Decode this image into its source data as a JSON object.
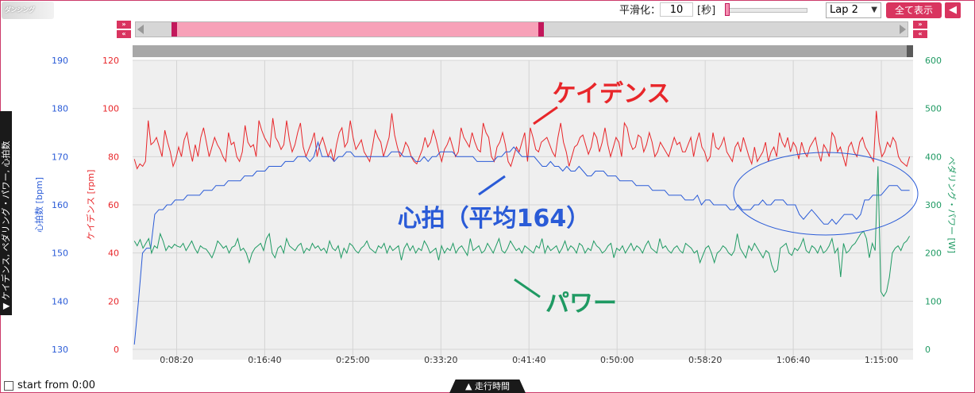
{
  "header": {
    "logo_text": "ダンシング",
    "smoothing_label": "平滑化：",
    "smoothing_value": "10",
    "seconds_label": "[秒]",
    "lap_value": "Lap 2",
    "show_all_label": "全て表示",
    "back_icon": "arrow-left-icon"
  },
  "range_nav": {
    "left_buttons": [
      "»",
      "«"
    ],
    "right_buttons": [
      "»",
      "«"
    ]
  },
  "side_tab_label": "▼ ケイデンス, ペダリング・パワー, 心拍数",
  "footer": {
    "start_from_label": "start from 0:00",
    "xaxis_tab_label": "▲ 走行時間"
  },
  "colors": {
    "heart_rate": "#2a5bd7",
    "cadence": "#e8262a",
    "power": "#1f9a63",
    "accent": "#d9345f",
    "plot_bg": "#efefef"
  },
  "chart_data": {
    "type": "line",
    "x_ticks": [
      "0:08:20",
      "0:16:40",
      "0:25:00",
      "0:33:20",
      "0:41:40",
      "0:50:00",
      "0:58:20",
      "1:06:40",
      "1:15:00"
    ],
    "x_tick_seconds": [
      500,
      1000,
      1500,
      2000,
      2500,
      3000,
      3500,
      4000,
      4500
    ],
    "x_range_seconds": [
      250,
      4680
    ],
    "axes": {
      "heart_rate": {
        "label": "心拍数 [bpm]",
        "ticks": [
          "190",
          "180",
          "170",
          "160",
          "150",
          "140",
          "130"
        ],
        "range": [
          130,
          190
        ]
      },
      "cadence": {
        "label": "ケイデンス [rpm]",
        "ticks": [
          "120",
          "100",
          "80",
          "60",
          "40",
          "20",
          "0"
        ],
        "range": [
          0,
          120
        ]
      },
      "power": {
        "label": "ペダリング・パワー [W]",
        "ticks": [
          "600",
          "500",
          "400",
          "300",
          "200",
          "100",
          "0"
        ],
        "range": [
          0,
          600
        ]
      }
    },
    "grid": true,
    "series": [
      {
        "name": "ケイデンス",
        "axis": "cadence",
        "values": [
          79,
          75,
          77,
          76,
          78,
          95,
          85,
          86,
          88,
          84,
          80,
          91,
          86,
          82,
          76,
          79,
          84,
          80,
          87,
          90,
          83,
          78,
          85,
          80,
          88,
          92,
          86,
          80,
          84,
          88,
          85,
          83,
          80,
          78,
          90,
          85,
          86,
          80,
          78,
          82,
          93,
          86,
          84,
          85,
          80,
          95,
          91,
          88,
          86,
          84,
          96,
          88,
          86,
          83,
          85,
          95,
          87,
          82,
          85,
          90,
          94,
          84,
          80,
          83,
          86,
          90,
          80,
          85,
          88,
          84,
          80,
          83,
          78,
          85,
          90,
          92,
          84,
          86,
          95,
          88,
          83,
          85,
          87,
          82,
          80,
          78,
          84,
          91,
          88,
          86,
          80,
          84,
          88,
          98,
          89,
          84,
          80,
          82,
          86,
          84,
          80,
          78,
          77,
          80,
          83,
          88,
          84,
          86,
          91,
          87,
          82,
          78,
          83,
          85,
          88,
          84,
          80,
          82,
          92,
          88,
          86,
          84,
          90,
          86,
          83,
          82,
          94,
          90,
          88,
          80,
          78,
          84,
          86,
          90,
          85,
          78,
          76,
          80,
          84,
          82,
          86,
          90,
          78,
          92,
          88,
          83,
          82,
          86,
          87,
          88,
          85,
          82,
          80,
          88,
          94,
          86,
          82,
          76,
          80,
          84,
          85,
          88,
          89,
          85,
          81,
          84,
          90,
          88,
          82,
          86,
          92,
          85,
          80,
          84,
          88,
          86,
          80,
          94,
          92,
          86,
          83,
          84,
          89,
          88,
          82,
          85,
          90,
          86,
          80,
          82,
          86,
          84,
          82,
          80,
          84,
          88,
          85,
          86,
          82,
          82,
          85,
          88,
          80,
          86,
          90,
          84,
          82,
          78,
          80,
          90,
          84,
          83,
          85,
          88,
          82,
          80,
          78,
          84,
          86,
          82,
          88,
          84,
          80,
          77,
          84,
          78,
          80,
          82,
          86,
          78,
          82,
          84,
          80,
          90,
          86,
          84,
          88,
          82,
          86,
          84,
          79,
          86,
          82,
          80,
          84,
          86,
          88,
          82,
          78,
          85,
          83,
          80,
          90,
          88,
          82,
          84,
          80,
          76,
          84,
          86,
          82,
          80,
          86,
          88,
          84,
          82,
          80,
          78,
          99,
          86,
          80,
          82,
          86,
          84,
          88,
          86,
          80,
          78,
          77,
          76,
          80
        ]
      },
      {
        "name": "心拍（平均164）",
        "axis": "heart_rate",
        "values": [
          131,
          140,
          150,
          151,
          151,
          158,
          159,
          159,
          160,
          160,
          161,
          161,
          161,
          162,
          162,
          162,
          162,
          163,
          163,
          163,
          164,
          164,
          164,
          165,
          165,
          165,
          165,
          166,
          166,
          166,
          167,
          167,
          167,
          168,
          168,
          168,
          168,
          169,
          169,
          169,
          170,
          170,
          170,
          169,
          170,
          173,
          170,
          170,
          170,
          169,
          170,
          170,
          171,
          171,
          170,
          170,
          170,
          170,
          170,
          170,
          170,
          170,
          170,
          171,
          171,
          171,
          170,
          170,
          170,
          169,
          169,
          170,
          169,
          170,
          170,
          171,
          171,
          171,
          171,
          170,
          170,
          170,
          170,
          170,
          169,
          169,
          169,
          169,
          169,
          170,
          170,
          171,
          171,
          172,
          171,
          170,
          170,
          170,
          170,
          169,
          168,
          168,
          169,
          168,
          168,
          167,
          168,
          167,
          167,
          168,
          167,
          166,
          166,
          167,
          167,
          167,
          166,
          166,
          166,
          165,
          165,
          165,
          165,
          164,
          164,
          164,
          164,
          163,
          163,
          163,
          163,
          162,
          162,
          162,
          162,
          161,
          161,
          161,
          162,
          160,
          161,
          161,
          160,
          160,
          160,
          160,
          159,
          159,
          160,
          159,
          159,
          159,
          160,
          160,
          161,
          160,
          160,
          161,
          161,
          161,
          160,
          160,
          160,
          158,
          157,
          158,
          159,
          158,
          157,
          156,
          156,
          157,
          156,
          157,
          158,
          158,
          158,
          157,
          158,
          161,
          161,
          162,
          162,
          162,
          163,
          164,
          164,
          164,
          163,
          163,
          163
        ]
      },
      {
        "name": "パワー",
        "axis": "power",
        "values": [
          225,
          215,
          228,
          210,
          220,
          230,
          200,
          215,
          210,
          240,
          225,
          205,
          215,
          210,
          218,
          214,
          212,
          220,
          205,
          215,
          225,
          210,
          200,
          215,
          210,
          208,
          200,
          190,
          205,
          225,
          218,
          210,
          215,
          200,
          212,
          215,
          230,
          205,
          210,
          200,
          180,
          200,
          210,
          215,
          220,
          205,
          230,
          240,
          200,
          190,
          210,
          215,
          200,
          230,
          215,
          210,
          205,
          215,
          220,
          200,
          210,
          205,
          220,
          210,
          215,
          205,
          210,
          200,
          225,
          210,
          205,
          215,
          190,
          210,
          200,
          220,
          215,
          205,
          200,
          210,
          215,
          225,
          210,
          205,
          200,
          215,
          210,
          220,
          200,
          215,
          205,
          210,
          215,
          185,
          210,
          220,
          205,
          215,
          200,
          210,
          205,
          225,
          215,
          200,
          205,
          210,
          185,
          215,
          200,
          210,
          205,
          220,
          200,
          210,
          215,
          205,
          195,
          230,
          205,
          210,
          215,
          200,
          205,
          220,
          210,
          200,
          215,
          230,
          205,
          200,
          210,
          225,
          215,
          205,
          210,
          200,
          215,
          210,
          205,
          200,
          215,
          210,
          230,
          200,
          215,
          205,
          210,
          215,
          200,
          210,
          225,
          205,
          215,
          210,
          200,
          220,
          215,
          200,
          210,
          205,
          225,
          215,
          210,
          200,
          205,
          215,
          220,
          190,
          210,
          205,
          215,
          200,
          210,
          220,
          205,
          215,
          210,
          200,
          215,
          225,
          210,
          205,
          200,
          230,
          210,
          215,
          205,
          200,
          210,
          215,
          205,
          200,
          220,
          215,
          210,
          200,
          205,
          180,
          195,
          210,
          215,
          200,
          180,
          200,
          205,
          215,
          210,
          200,
          195,
          205,
          240,
          210,
          200,
          190,
          215,
          205,
          220,
          210,
          200,
          190,
          205,
          200,
          175,
          160,
          165,
          210,
          215,
          220,
          200,
          195,
          210,
          205,
          215,
          230,
          205,
          200,
          215,
          210,
          200,
          215,
          200,
          205,
          215,
          230,
          200,
          210,
          150,
          220,
          200,
          205,
          215,
          220,
          230,
          240,
          245,
          230,
          190,
          220,
          205,
          380,
          120,
          110,
          120,
          150,
          200,
          210,
          215,
          205,
          220,
          225,
          235
        ]
      }
    ],
    "annotations": [
      {
        "text": "ケイデンス",
        "color": "#e8262a"
      },
      {
        "text": "心拍（平均164）",
        "color": "#2a5bd7"
      },
      {
        "text": "パワー",
        "color": "#1f9a63"
      }
    ]
  }
}
